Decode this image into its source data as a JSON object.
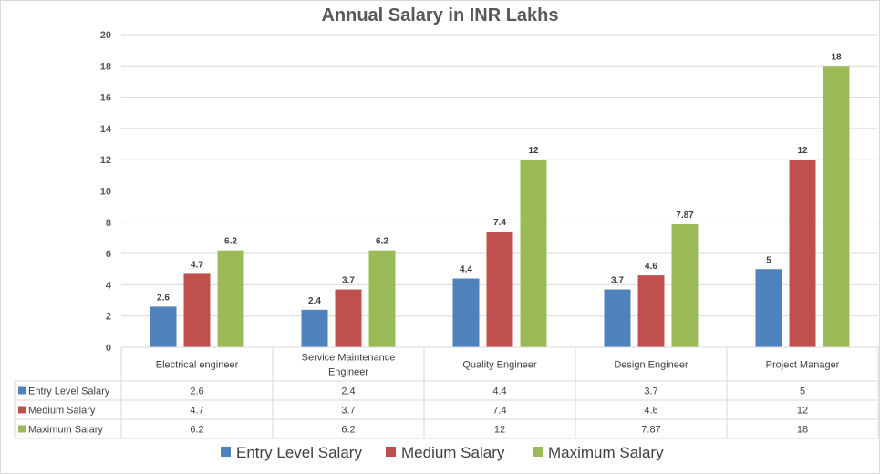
{
  "chart_data": {
    "type": "bar",
    "title": "Annual Salary in INR Lakhs",
    "xlabel": "",
    "ylabel": "",
    "ylim": [
      0,
      20
    ],
    "y_ticks": [
      "0",
      "2",
      "4",
      "6",
      "8",
      "10",
      "12",
      "14",
      "16",
      "18",
      "20"
    ],
    "grid": true,
    "legend_position": "bottom",
    "categories": [
      "Electrical engineer",
      "Service Maintenance Engineer",
      "Quality Engineer",
      "Design Engineer",
      "Project Manager"
    ],
    "category_lines": [
      [
        "Electrical engineer"
      ],
      [
        "Service Maintenance",
        "Engineer"
      ],
      [
        "Quality Engineer"
      ],
      [
        "Design Engineer"
      ],
      [
        "Project Manager"
      ]
    ],
    "series": [
      {
        "name": "Entry Level Salary",
        "color": "#4f81bd",
        "values": [
          2.6,
          2.4,
          4.4,
          3.7,
          5
        ],
        "labels": [
          "2.6",
          "2.4",
          "4.4",
          "3.7",
          "5"
        ]
      },
      {
        "name": "Medium Salary",
        "color": "#c0504d",
        "values": [
          4.7,
          3.7,
          7.4,
          4.6,
          12
        ],
        "labels": [
          "4.7",
          "3.7",
          "7.4",
          "4.6",
          "12"
        ]
      },
      {
        "name": "Maximum Salary",
        "color": "#9bbb59",
        "values": [
          6.2,
          6.2,
          12,
          7.87,
          18
        ],
        "labels": [
          "6.2",
          "6.2",
          "12",
          "7.87",
          "18"
        ]
      }
    ],
    "data_table": true
  }
}
